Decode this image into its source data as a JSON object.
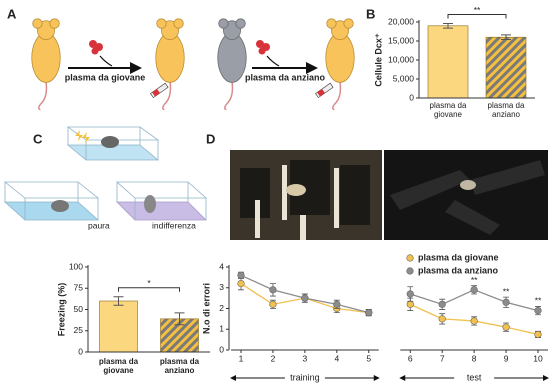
{
  "figure": {
    "panels": [
      "A",
      "B",
      "C",
      "D"
    ],
    "arrows": [
      "plasma da giovane",
      "plasma da anziano"
    ],
    "scenes": [
      "paura",
      "indifferenza"
    ]
  },
  "chart_data": [
    {
      "type": "bar",
      "ylabel": "Cellule Dcx⁺",
      "categories": [
        "plasma da giovane",
        "plasma da anziano"
      ],
      "values": [
        19000,
        16000
      ],
      "errors": [
        600,
        600
      ],
      "colors": [
        "#fbd87f",
        "#f5c040"
      ],
      "hatch": [
        false,
        true
      ],
      "hatch_color": "#7a7a7a",
      "ylim": [
        0,
        20000
      ],
      "yticks": [
        0,
        {
          "value": 5000,
          "label": "5,000"
        },
        {
          "value": 10000,
          "label": "10,000"
        },
        {
          "value": 15000,
          "label": "15,000"
        },
        {
          "value": 20000,
          "label": "20,000"
        }
      ],
      "significance": {
        "text": "**",
        "between": [
          0,
          1
        ]
      }
    },
    {
      "type": "bar",
      "ylabel": "Freezing (%)",
      "categories": [
        "plasma da giovane",
        "plasma da anziano"
      ],
      "values": [
        60,
        39
      ],
      "errors": [
        5,
        7
      ],
      "colors": [
        "#fbd87f",
        "#f5c040"
      ],
      "hatch": [
        false,
        true
      ],
      "hatch_color": "#7a7a7a",
      "ylim": [
        0,
        100
      ],
      "yticks": [
        0,
        25,
        50,
        75,
        100
      ],
      "significance": {
        "text": "*",
        "between": [
          0,
          1
        ]
      }
    },
    {
      "type": "line",
      "ylabel": "N.o di errori",
      "categories": [
        "1",
        "2",
        "3",
        "4",
        "5",
        "6",
        "7",
        "8",
        "9",
        "10"
      ],
      "phases": [
        {
          "label": "training",
          "from": 0,
          "to": 4
        },
        {
          "label": "test",
          "from": 5,
          "to": 9
        }
      ],
      "series": [
        {
          "name": "plasma da giovane",
          "color": "#f2c14e",
          "values": [
            3.2,
            2.2,
            2.5,
            2.0,
            1.8,
            2.2,
            1.5,
            1.4,
            1.1,
            0.75
          ],
          "errors": [
            0.3,
            0.2,
            0.2,
            0.2,
            0.15,
            0.3,
            0.25,
            0.2,
            0.2,
            0.15
          ]
        },
        {
          "name": "plasma da anziano",
          "color": "#8c8c8c",
          "values": [
            3.6,
            2.9,
            2.5,
            2.2,
            1.8,
            2.7,
            2.2,
            2.9,
            2.3,
            1.9
          ],
          "errors": [
            0.15,
            0.3,
            0.2,
            0.2,
            0.15,
            0.35,
            0.25,
            0.2,
            0.25,
            0.2
          ]
        }
      ],
      "ylim": [
        0,
        4
      ],
      "yticks": [
        0,
        1,
        2,
        3,
        4
      ],
      "annotations": [
        {
          "series": 1,
          "index": 7,
          "text": "**"
        },
        {
          "series": 1,
          "index": 8,
          "text": "**"
        },
        {
          "series": 1,
          "index": 9,
          "text": "**"
        }
      ]
    }
  ]
}
